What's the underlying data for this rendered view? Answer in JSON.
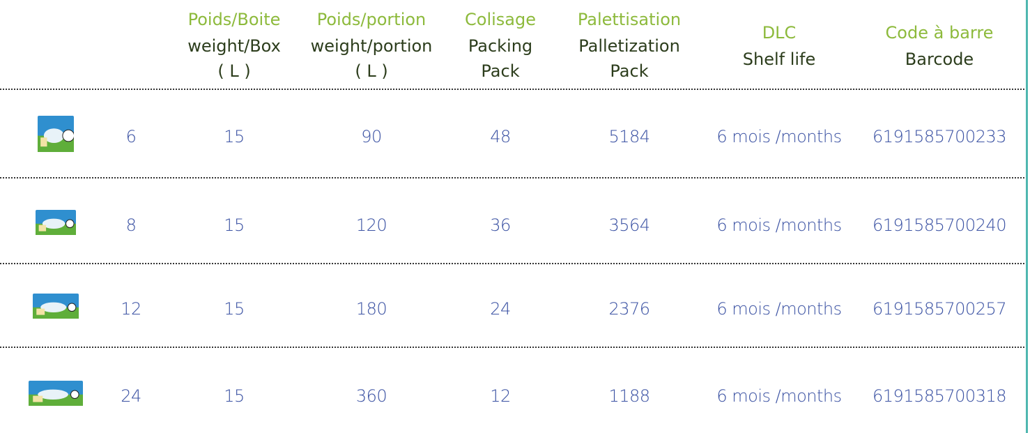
{
  "header": {
    "columns": [
      {
        "lines": [
          "Poids/Boite",
          "weight/Box",
          "( L )"
        ]
      },
      {
        "lines": [
          "Poids/portion",
          "weight/portion",
          "( L )"
        ]
      },
      {
        "lines": [
          "Colisage",
          "Packing",
          "Pack"
        ]
      },
      {
        "lines": [
          "Palettisation",
          "Palletization",
          "Pack"
        ]
      },
      {
        "lines": [
          "DLC",
          "Shelf life"
        ]
      },
      {
        "lines": [
          "Code à barre",
          "Barcode"
        ]
      }
    ]
  },
  "table": {
    "rows": [
      [
        6,
        15,
        90,
        48,
        5184,
        "6 mois /months",
        "6191585700233"
      ],
      [
        8,
        15,
        120,
        36,
        3564,
        "6 mois /months",
        "6191585700240"
      ],
      [
        12,
        15,
        180,
        24,
        2376,
        "6 mois /months",
        "6191585700257"
      ],
      [
        24,
        15,
        360,
        12,
        1188,
        "6 mois /months",
        "6191585700318"
      ]
    ]
  }
}
